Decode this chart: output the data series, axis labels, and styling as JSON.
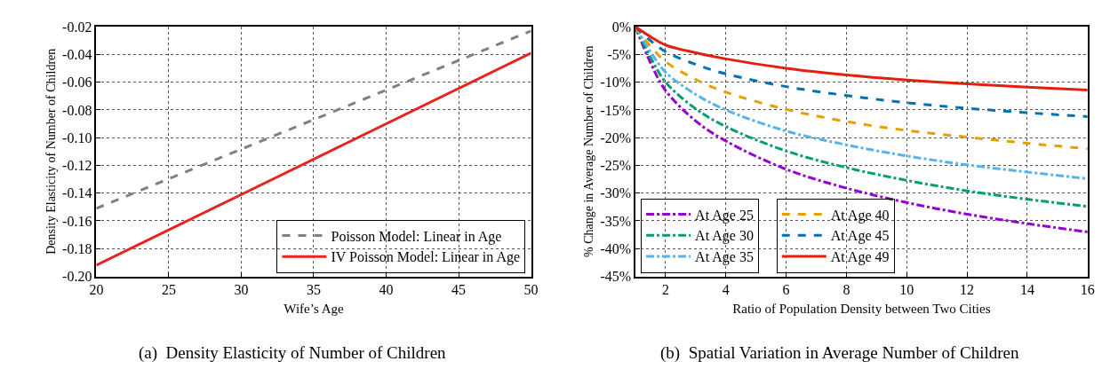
{
  "chart_data": [
    {
      "type": "line",
      "title": "(a)  Density Elasticity of Number of Children",
      "xlabel": "Wife’s Age",
      "ylabel": "Density Elasticity of Number of Children",
      "xlim": [
        20,
        50
      ],
      "xticks": [
        20,
        25,
        30,
        35,
        40,
        45,
        50
      ],
      "ylim": [
        -0.2,
        -0.02
      ],
      "yticks": [
        {
          "value": -0.2,
          "label": "-0.20"
        },
        {
          "value": -0.18,
          "label": "-0.18"
        },
        {
          "value": -0.16,
          "label": "-0.16"
        },
        {
          "value": -0.14,
          "label": "-0.14"
        },
        {
          "value": -0.12,
          "label": "-0.12"
        },
        {
          "value": -0.1,
          "label": "-0.10"
        },
        {
          "value": -0.08,
          "label": "-0.08"
        },
        {
          "value": -0.06,
          "label": "-0.06"
        },
        {
          "value": -0.04,
          "label": "-0.04"
        },
        {
          "value": -0.02,
          "label": "-0.02"
        }
      ],
      "grid": true,
      "legend": "bottom right",
      "x": [
        20,
        50
      ],
      "series": [
        {
          "name": "Poisson Model: Linear in Age",
          "color": "#808080",
          "line_style": "dashed",
          "values": [
            -0.151,
            -0.023
          ]
        },
        {
          "name": "IV Poisson Model: Linear in Age",
          "color": "#e8231b",
          "line_style": "solid",
          "values": [
            -0.192,
            -0.039
          ]
        }
      ]
    },
    {
      "type": "line",
      "title": "(b)  Spatial Variation in Average Number of Children",
      "xlabel": "Ratio of Population Density between Two Cities",
      "ylabel": "% Change in Average Number of Children",
      "xlim": [
        1,
        16
      ],
      "xticks": [
        2,
        4,
        6,
        8,
        10,
        12,
        14,
        16
      ],
      "ylim": [
        -45,
        0
      ],
      "yticks": [
        {
          "value": -45,
          "label": "-45%"
        },
        {
          "value": -40,
          "label": "-40%"
        },
        {
          "value": -35,
          "label": "-35%"
        },
        {
          "value": -30,
          "label": "-30%"
        },
        {
          "value": -25,
          "label": "-25%"
        },
        {
          "value": -20,
          "label": "-20%"
        },
        {
          "value": -15,
          "label": "-15%"
        },
        {
          "value": -10,
          "label": "-10%"
        },
        {
          "value": -5,
          "label": "-5%"
        },
        {
          "value": 0,
          "label": "0%"
        }
      ],
      "grid": true,
      "legend": "bottom left",
      "x": [
        1,
        1.5,
        2,
        3,
        4,
        6,
        8,
        10,
        12,
        14,
        16
      ],
      "series": [
        {
          "name": "At Age 25",
          "color": "#9400d3",
          "line_style": "dashdot",
          "values": [
            0,
            -6.5,
            -11.5,
            -17,
            -20.6,
            -25.7,
            -29.1,
            -31.7,
            -33.8,
            -35.5,
            -37
          ]
        },
        {
          "name": "At Age 30",
          "color": "#009e73",
          "line_style": "dashdot",
          "values": [
            0,
            -5.5,
            -10,
            -14.8,
            -18,
            -22.4,
            -25.4,
            -27.7,
            -29.6,
            -31.1,
            -32.4
          ]
        },
        {
          "name": "At Age 35",
          "color": "#56b4e9",
          "line_style": "dashdot",
          "values": [
            0,
            -4.5,
            -8.2,
            -12.2,
            -15,
            -18.8,
            -21.3,
            -23.3,
            -24.9,
            -26.2,
            -27.4
          ]
        },
        {
          "name": "At Age 40",
          "color": "#e69f00",
          "line_style": "dashed",
          "values": [
            0,
            -3.5,
            -6.3,
            -9.5,
            -11.8,
            -14.9,
            -17.1,
            -18.7,
            -19.9,
            -21,
            -22
          ]
        },
        {
          "name": "At Age 45",
          "color": "#0072b2",
          "line_style": "dashed",
          "values": [
            0,
            -2.5,
            -4.5,
            -6.8,
            -8.5,
            -10.8,
            -12.4,
            -13.7,
            -14.7,
            -15.5,
            -16.2
          ]
        },
        {
          "name": "At Age 49",
          "color": "#e51e10",
          "line_style": "solid",
          "values": [
            0,
            -1.8,
            -3.3,
            -4.7,
            -5.8,
            -7.5,
            -8.7,
            -9.6,
            -10.3,
            -10.9,
            -11.4
          ]
        }
      ]
    }
  ]
}
